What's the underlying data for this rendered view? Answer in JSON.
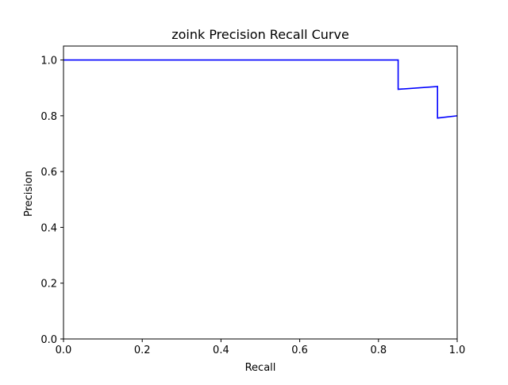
{
  "chart_data": {
    "type": "line",
    "title": "zoink Precision Recall Curve",
    "xlabel": "Recall",
    "ylabel": "Precision",
    "xlim": [
      0.0,
      1.0
    ],
    "ylim": [
      0.0,
      1.05
    ],
    "grid": false,
    "x_ticks": [
      {
        "value": 0.0,
        "label": "0.0"
      },
      {
        "value": 0.2,
        "label": "0.2"
      },
      {
        "value": 0.4,
        "label": "0.4"
      },
      {
        "value": 0.6,
        "label": "0.6"
      },
      {
        "value": 0.8,
        "label": "0.8"
      },
      {
        "value": 1.0,
        "label": "1.0"
      }
    ],
    "y_ticks": [
      {
        "value": 0.0,
        "label": "0.0"
      },
      {
        "value": 0.2,
        "label": "0.2"
      },
      {
        "value": 0.4,
        "label": "0.4"
      },
      {
        "value": 0.6,
        "label": "0.6"
      },
      {
        "value": 0.8,
        "label": "0.8"
      },
      {
        "value": 1.0,
        "label": "1.0"
      }
    ],
    "series": [
      {
        "color": "#0000ff",
        "x": [
          0.0,
          0.85,
          0.85,
          0.95,
          0.95,
          1.0
        ],
        "y": [
          1.0,
          1.0,
          0.895,
          0.905,
          0.792,
          0.8
        ]
      }
    ]
  }
}
